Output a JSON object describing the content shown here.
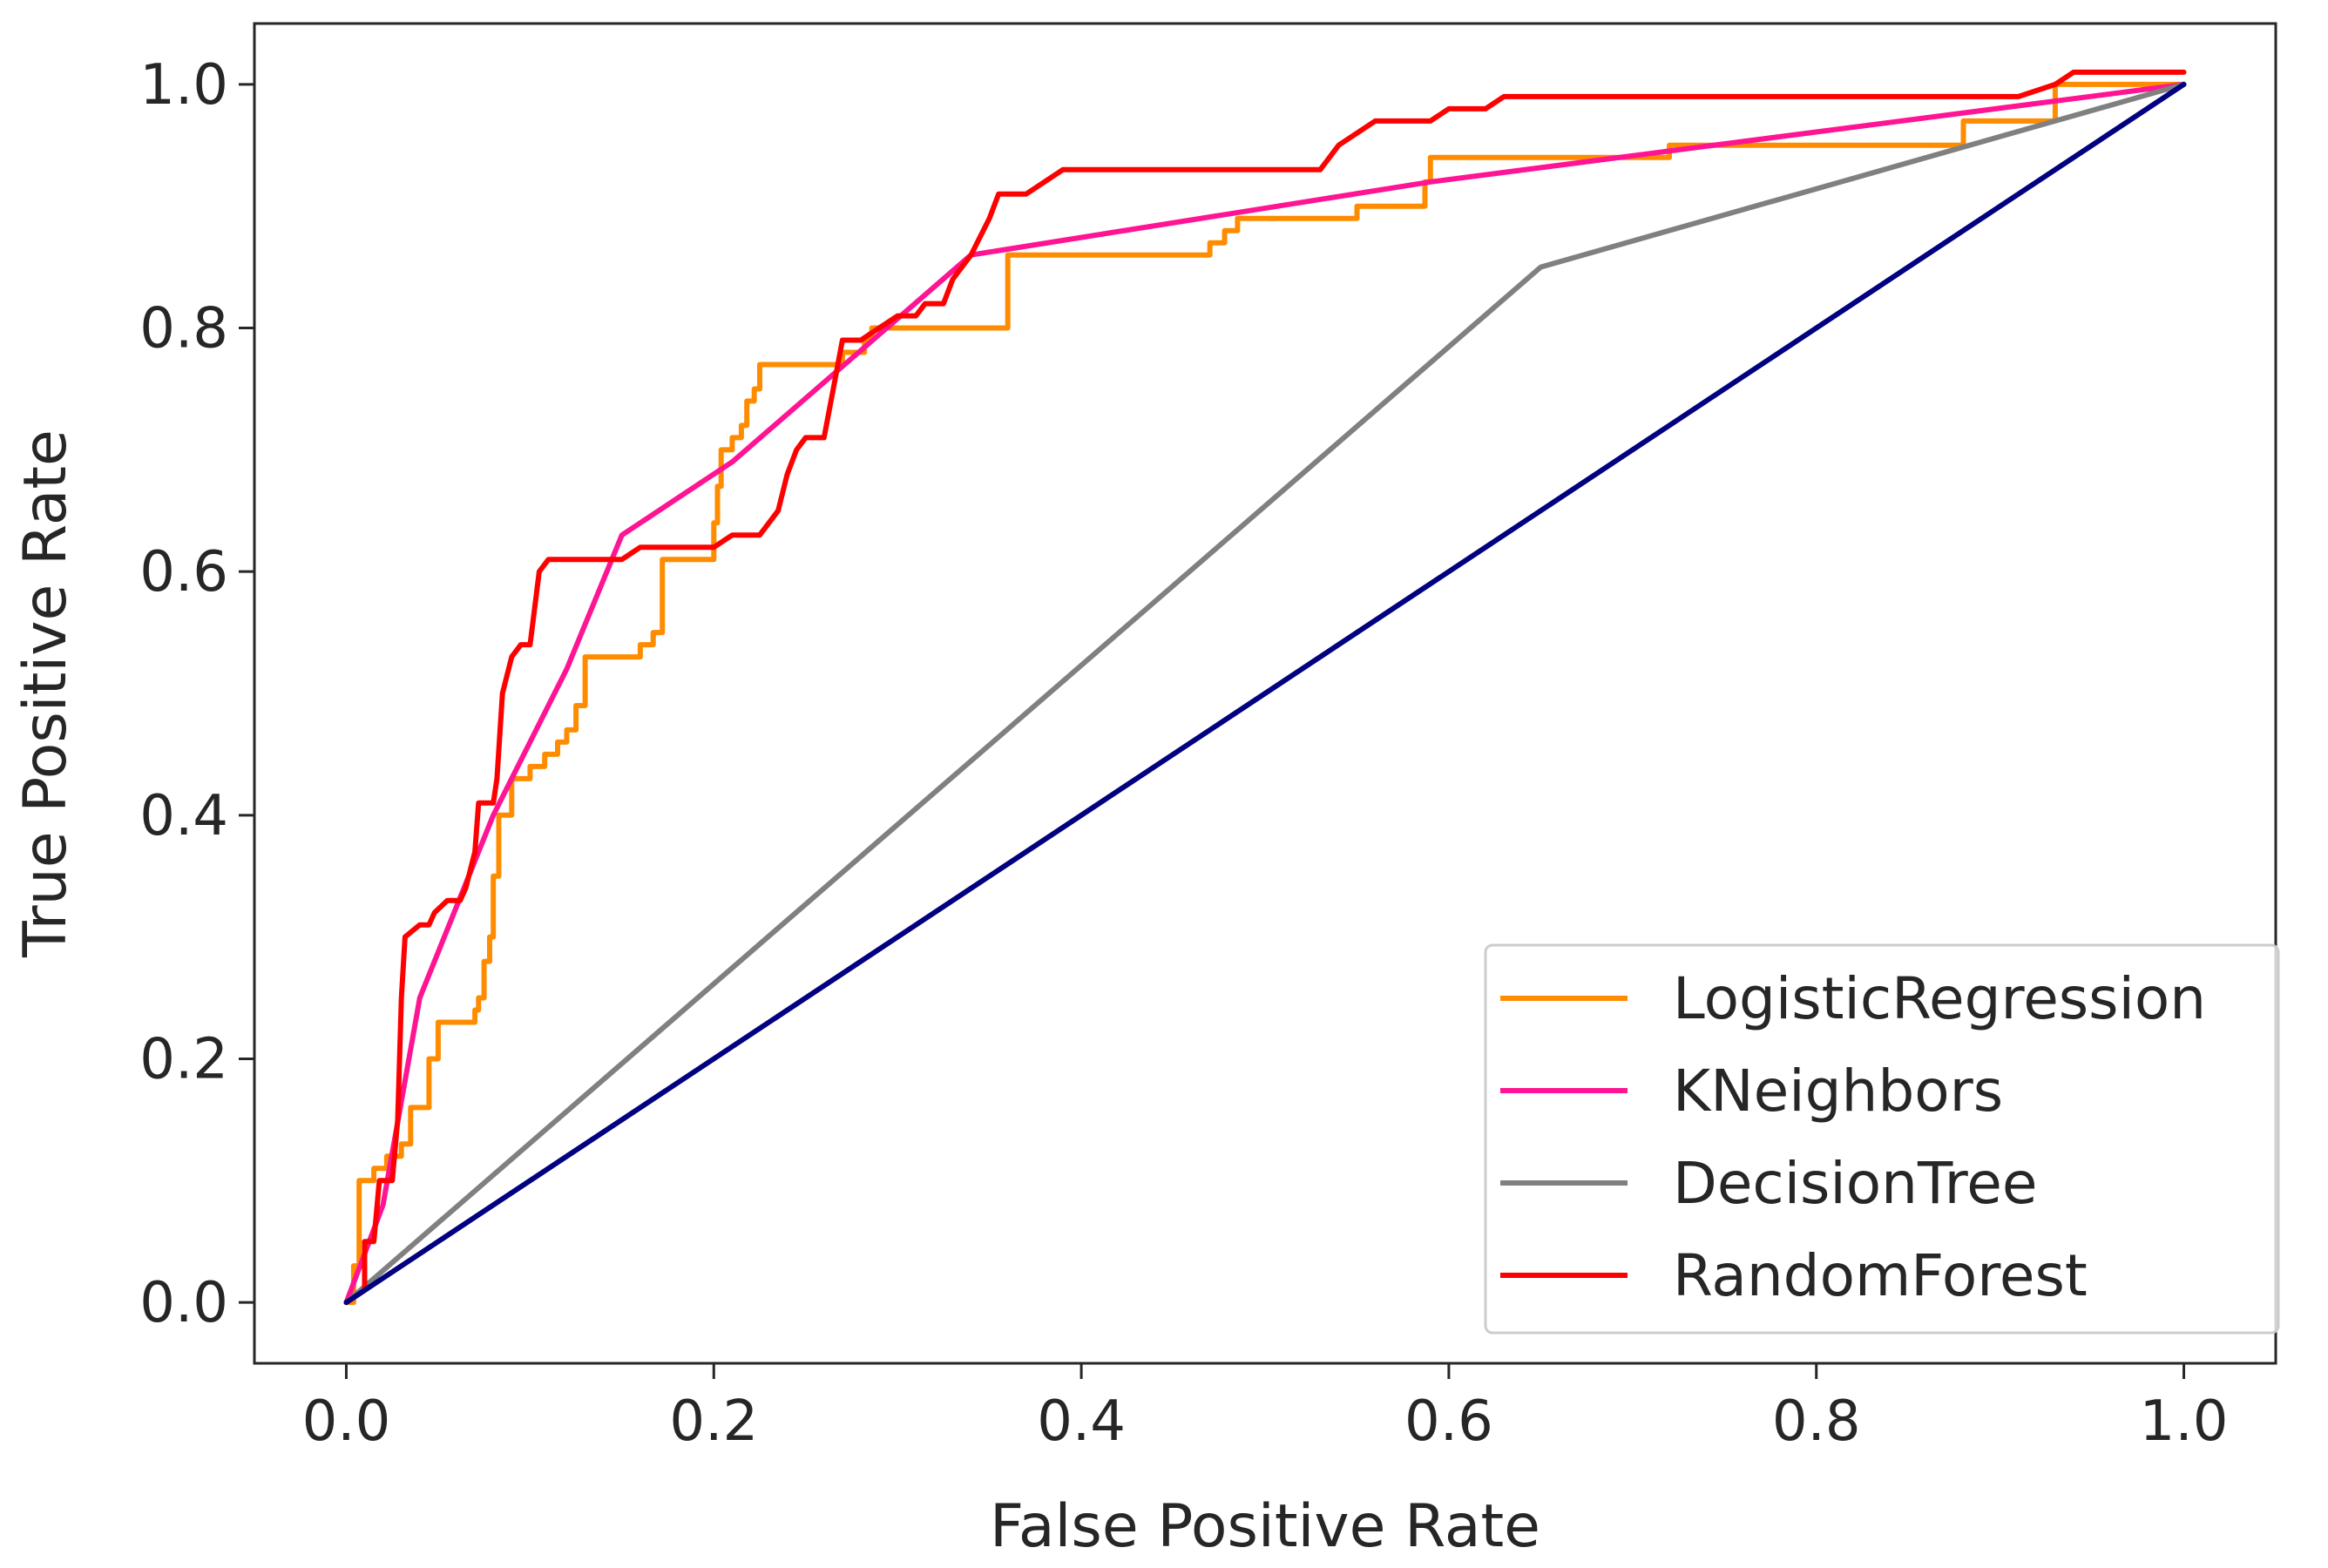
{
  "chart_data": {
    "type": "line",
    "xlabel": "False Positive Rate",
    "ylabel": "True Positive Rate",
    "xlim": [
      -0.05,
      1.05
    ],
    "ylim": [
      -0.05,
      1.05
    ],
    "xticks": [
      "0.0",
      "0.2",
      "0.4",
      "0.6",
      "0.8",
      "1.0"
    ],
    "yticks": [
      "0.0",
      "0.2",
      "0.4",
      "0.6",
      "0.8",
      "1.0"
    ],
    "grid": false,
    "legend_position": "lower-right",
    "series": [
      {
        "name": "LogisticRegression",
        "color": "#ff8c00",
        "points": [
          [
            0.0,
            0.0
          ],
          [
            0.004,
            0.0
          ],
          [
            0.004,
            0.03
          ],
          [
            0.007,
            0.03
          ],
          [
            0.007,
            0.1
          ],
          [
            0.015,
            0.1
          ],
          [
            0.015,
            0.11
          ],
          [
            0.022,
            0.11
          ],
          [
            0.022,
            0.12
          ],
          [
            0.03,
            0.12
          ],
          [
            0.03,
            0.13
          ],
          [
            0.035,
            0.13
          ],
          [
            0.035,
            0.16
          ],
          [
            0.045,
            0.16
          ],
          [
            0.045,
            0.2
          ],
          [
            0.05,
            0.2
          ],
          [
            0.05,
            0.23
          ],
          [
            0.07,
            0.23
          ],
          [
            0.07,
            0.24
          ],
          [
            0.072,
            0.24
          ],
          [
            0.072,
            0.25
          ],
          [
            0.075,
            0.25
          ],
          [
            0.075,
            0.28
          ],
          [
            0.078,
            0.28
          ],
          [
            0.078,
            0.3
          ],
          [
            0.08,
            0.3
          ],
          [
            0.08,
            0.35
          ],
          [
            0.083,
            0.35
          ],
          [
            0.083,
            0.4
          ],
          [
            0.09,
            0.4
          ],
          [
            0.09,
            0.43
          ],
          [
            0.1,
            0.43
          ],
          [
            0.1,
            0.44
          ],
          [
            0.108,
            0.44
          ],
          [
            0.108,
            0.45
          ],
          [
            0.115,
            0.45
          ],
          [
            0.115,
            0.46
          ],
          [
            0.12,
            0.46
          ],
          [
            0.12,
            0.47
          ],
          [
            0.125,
            0.47
          ],
          [
            0.125,
            0.49
          ],
          [
            0.13,
            0.49
          ],
          [
            0.13,
            0.53
          ],
          [
            0.16,
            0.53
          ],
          [
            0.16,
            0.54
          ],
          [
            0.167,
            0.54
          ],
          [
            0.167,
            0.55
          ],
          [
            0.172,
            0.55
          ],
          [
            0.172,
            0.61
          ],
          [
            0.2,
            0.61
          ],
          [
            0.2,
            0.64
          ],
          [
            0.202,
            0.64
          ],
          [
            0.202,
            0.67
          ],
          [
            0.204,
            0.67
          ],
          [
            0.204,
            0.7
          ],
          [
            0.21,
            0.7
          ],
          [
            0.21,
            0.71
          ],
          [
            0.215,
            0.71
          ],
          [
            0.215,
            0.72
          ],
          [
            0.218,
            0.72
          ],
          [
            0.218,
            0.74
          ],
          [
            0.222,
            0.74
          ],
          [
            0.222,
            0.75
          ],
          [
            0.225,
            0.75
          ],
          [
            0.225,
            0.77
          ],
          [
            0.27,
            0.77
          ],
          [
            0.27,
            0.78
          ],
          [
            0.282,
            0.78
          ],
          [
            0.282,
            0.79
          ],
          [
            0.286,
            0.79
          ],
          [
            0.286,
            0.8
          ],
          [
            0.36,
            0.8
          ],
          [
            0.36,
            0.86
          ],
          [
            0.47,
            0.86
          ],
          [
            0.47,
            0.87
          ],
          [
            0.478,
            0.87
          ],
          [
            0.478,
            0.88
          ],
          [
            0.485,
            0.88
          ],
          [
            0.485,
            0.89
          ],
          [
            0.55,
            0.89
          ],
          [
            0.55,
            0.9
          ],
          [
            0.587,
            0.9
          ],
          [
            0.587,
            0.92
          ],
          [
            0.59,
            0.92
          ],
          [
            0.59,
            0.94
          ],
          [
            0.72,
            0.94
          ],
          [
            0.72,
            0.95
          ],
          [
            0.88,
            0.95
          ],
          [
            0.88,
            0.97
          ],
          [
            0.93,
            0.97
          ],
          [
            0.93,
            0.98
          ],
          [
            0.93,
            1.0
          ],
          [
            1.0,
            1.0
          ]
        ]
      },
      {
        "name": "KNeighbors",
        "color": "#ff1493",
        "points": [
          [
            0.0,
            0.0
          ],
          [
            0.02,
            0.08
          ],
          [
            0.04,
            0.25
          ],
          [
            0.08,
            0.4
          ],
          [
            0.12,
            0.52
          ],
          [
            0.15,
            0.63
          ],
          [
            0.21,
            0.69
          ],
          [
            0.34,
            0.86
          ],
          [
            0.59,
            0.92
          ],
          [
            1.0,
            1.0
          ]
        ]
      },
      {
        "name": "DecisionTree",
        "color": "#808080",
        "points": [
          [
            0.0,
            0.0
          ],
          [
            0.65,
            0.85
          ],
          [
            1.0,
            1.0
          ]
        ]
      },
      {
        "name": "RandomForest",
        "color": "#ff0000",
        "points": [
          [
            0.0,
            0.0
          ],
          [
            0.01,
            0.01
          ],
          [
            0.01,
            0.05
          ],
          [
            0.015,
            0.05
          ],
          [
            0.018,
            0.1
          ],
          [
            0.025,
            0.1
          ],
          [
            0.028,
            0.15
          ],
          [
            0.03,
            0.25
          ],
          [
            0.032,
            0.3
          ],
          [
            0.04,
            0.31
          ],
          [
            0.045,
            0.31
          ],
          [
            0.048,
            0.32
          ],
          [
            0.055,
            0.33
          ],
          [
            0.062,
            0.33
          ],
          [
            0.065,
            0.34
          ],
          [
            0.07,
            0.37
          ],
          [
            0.072,
            0.41
          ],
          [
            0.08,
            0.41
          ],
          [
            0.082,
            0.43
          ],
          [
            0.085,
            0.5
          ],
          [
            0.09,
            0.53
          ],
          [
            0.095,
            0.54
          ],
          [
            0.1,
            0.54
          ],
          [
            0.105,
            0.6
          ],
          [
            0.11,
            0.61
          ],
          [
            0.15,
            0.61
          ],
          [
            0.16,
            0.62
          ],
          [
            0.2,
            0.62
          ],
          [
            0.21,
            0.63
          ],
          [
            0.225,
            0.63
          ],
          [
            0.235,
            0.65
          ],
          [
            0.24,
            0.68
          ],
          [
            0.245,
            0.7
          ],
          [
            0.25,
            0.71
          ],
          [
            0.26,
            0.71
          ],
          [
            0.265,
            0.75
          ],
          [
            0.27,
            0.79
          ],
          [
            0.28,
            0.79
          ],
          [
            0.29,
            0.8
          ],
          [
            0.3,
            0.81
          ],
          [
            0.31,
            0.81
          ],
          [
            0.315,
            0.82
          ],
          [
            0.325,
            0.82
          ],
          [
            0.33,
            0.84
          ],
          [
            0.34,
            0.86
          ],
          [
            0.35,
            0.89
          ],
          [
            0.355,
            0.91
          ],
          [
            0.37,
            0.91
          ],
          [
            0.38,
            0.92
          ],
          [
            0.39,
            0.93
          ],
          [
            0.53,
            0.93
          ],
          [
            0.54,
            0.95
          ],
          [
            0.56,
            0.97
          ],
          [
            0.59,
            0.97
          ],
          [
            0.6,
            0.98
          ],
          [
            0.62,
            0.98
          ],
          [
            0.63,
            0.99
          ],
          [
            0.91,
            0.99
          ],
          [
            0.93,
            1.0
          ],
          [
            0.94,
            1.01
          ],
          [
            1.0,
            1.01
          ]
        ]
      },
      {
        "color": "#000080",
        "points": [
          [
            0.0,
            0.0
          ],
          [
            1.0,
            1.0
          ]
        ]
      }
    ]
  }
}
